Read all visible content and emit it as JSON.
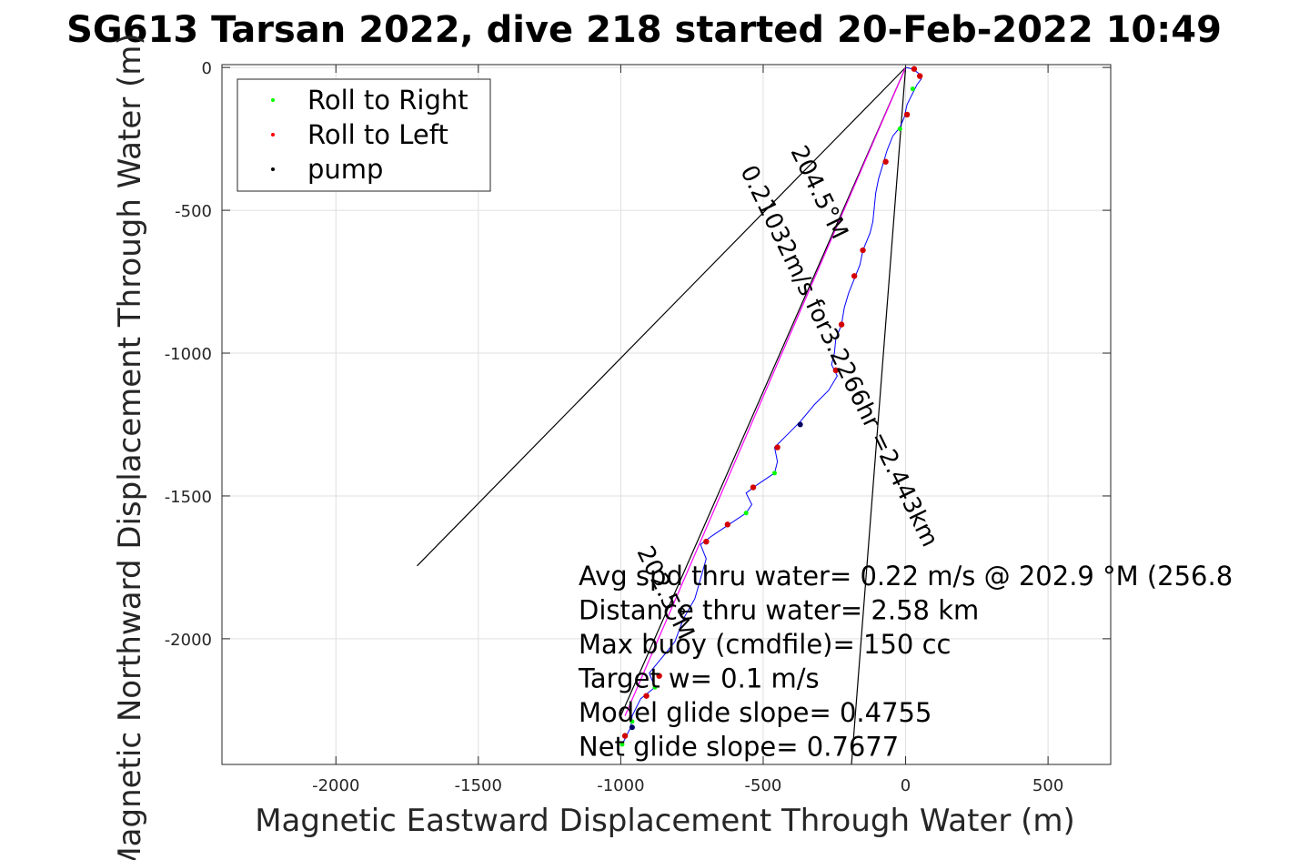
{
  "chart_data": {
    "type": "scatter",
    "title": "SG613 Tarsan 2022, dive 218 started 20-Feb-2022 10:49",
    "xlabel": "Magnetic Eastward Displacement Through Water (m)",
    "ylabel": "Magnetic Northward Displacement Through Water (m)",
    "xlim": [
      -2400,
      720
    ],
    "ylim": [
      -2440,
      10
    ],
    "xticks": [
      -2000,
      -1500,
      -1000,
      -500,
      0,
      500
    ],
    "yticks": [
      0,
      -500,
      -1000,
      -1500,
      -2000
    ],
    "grid": true,
    "legend_position": "top-left",
    "legend": [
      {
        "label": "Roll to Right",
        "color": "#00ff00"
      },
      {
        "label": "Roll to Left",
        "color": "#ff0000"
      },
      {
        "label": "pump",
        "color": "#000000"
      }
    ],
    "track": [
      [
        0,
        0
      ],
      [
        25,
        -5
      ],
      [
        45,
        -20
      ],
      [
        55,
        -40
      ],
      [
        40,
        -60
      ],
      [
        25,
        -90
      ],
      [
        5,
        -130
      ],
      [
        -5,
        -175
      ],
      [
        -20,
        -210
      ],
      [
        -45,
        -240
      ],
      [
        -65,
        -290
      ],
      [
        -80,
        -340
      ],
      [
        -95,
        -390
      ],
      [
        -105,
        -440
      ],
      [
        -110,
        -490
      ],
      [
        -115,
        -540
      ],
      [
        -125,
        -580
      ],
      [
        -150,
        -640
      ],
      [
        -160,
        -690
      ],
      [
        -180,
        -740
      ],
      [
        -200,
        -790
      ],
      [
        -215,
        -840
      ],
      [
        -225,
        -900
      ],
      [
        -245,
        -950
      ],
      [
        -250,
        -1000
      ],
      [
        -260,
        -1040
      ],
      [
        -240,
        -1080
      ],
      [
        -270,
        -1130
      ],
      [
        -320,
        -1180
      ],
      [
        -370,
        -1240
      ],
      [
        -420,
        -1290
      ],
      [
        -460,
        -1330
      ],
      [
        -450,
        -1380
      ],
      [
        -460,
        -1420
      ],
      [
        -520,
        -1460
      ],
      [
        -560,
        -1490
      ],
      [
        -540,
        -1530
      ],
      [
        -560,
        -1560
      ],
      [
        -620,
        -1600
      ],
      [
        -680,
        -1640
      ],
      [
        -720,
        -1670
      ],
      [
        -700,
        -1720
      ],
      [
        -720,
        -1790
      ],
      [
        -740,
        -1860
      ],
      [
        -780,
        -1930
      ],
      [
        -810,
        -2010
      ],
      [
        -850,
        -2060
      ],
      [
        -900,
        -2120
      ],
      [
        -880,
        -2170
      ],
      [
        -930,
        -2210
      ],
      [
        -960,
        -2270
      ],
      [
        -965,
        -2310
      ],
      [
        -990,
        -2360
      ]
    ],
    "roll_right": [
      [
        25,
        -75
      ],
      [
        -20,
        -215
      ],
      [
        -460,
        -1420
      ],
      [
        -560,
        -1560
      ],
      [
        -880,
        -2170
      ],
      [
        -960,
        -2290
      ],
      [
        -995,
        -2370
      ]
    ],
    "roll_left": [
      [
        30,
        -5
      ],
      [
        50,
        -30
      ],
      [
        5,
        -165
      ],
      [
        -70,
        -330
      ],
      [
        -150,
        -640
      ],
      [
        -180,
        -730
      ],
      [
        -225,
        -900
      ],
      [
        -245,
        -1060
      ],
      [
        -450,
        -1330
      ],
      [
        -535,
        -1470
      ],
      [
        -625,
        -1600
      ],
      [
        -700,
        -1660
      ],
      [
        -865,
        -2130
      ],
      [
        -910,
        -2200
      ],
      [
        -985,
        -2340
      ]
    ],
    "pump": [
      [
        -370,
        -1250
      ],
      [
        -960,
        -2310
      ]
    ],
    "lines": [
      {
        "color": "#000000",
        "points": [
          [
            0,
            0
          ],
          [
            -1715,
            -1745
          ]
        ]
      },
      {
        "color": "#000000",
        "points": [
          [
            0,
            0
          ],
          [
            -190,
            -2440
          ]
        ]
      },
      {
        "color": "#000000",
        "points": [
          [
            0,
            0
          ],
          [
            -1000,
            -2270
          ]
        ]
      },
      {
        "color": "#ff00ff",
        "points": [
          [
            0,
            0
          ],
          [
            -985,
            -2270
          ]
        ]
      }
    ],
    "track_labels": [
      {
        "text": "0.21032m/s for3.2266hr =2.443km",
        "rotation": 64
      },
      {
        "text": "204.5°M",
        "rotation": 64
      },
      {
        "text": "202.5°M",
        "rotation": 64
      }
    ],
    "stats": [
      "Avg spd thru water=  0.22 m/s @ 202.9 °M (256.8",
      "Distance thru water=  2.58 km",
      "Max buoy (cmdfile)= 150 cc",
      "Target w= 0.1 m/s",
      "Model glide slope= 0.4755",
      "Net glide slope= 0.7677"
    ]
  }
}
